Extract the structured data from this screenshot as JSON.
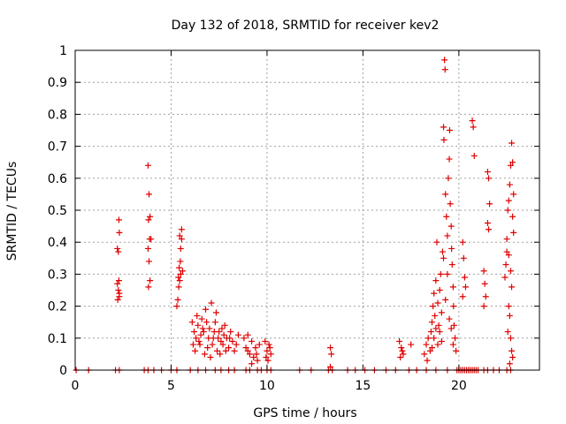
{
  "chart_data": {
    "type": "scatter",
    "title": "Day 132 of 2018, SRMTID for receiver kev2",
    "xlabel": "GPS time / hours",
    "ylabel": "SRMTID / TECUs",
    "xlim": [
      0,
      24.2
    ],
    "ylim": [
      0,
      1
    ],
    "xticks": [
      0,
      5,
      10,
      15,
      20
    ],
    "xtick_labels": [
      "0",
      "5",
      "10",
      "15",
      "20"
    ],
    "yticks": [
      0,
      0.1,
      0.2,
      0.3,
      0.4,
      0.5,
      0.6,
      0.7,
      0.8,
      0.9,
      1
    ],
    "ytick_labels": [
      "0",
      "0.1",
      "0.2",
      "0.3",
      "0.4",
      "0.5",
      "0.6",
      "0.7",
      "0.8",
      "0.9",
      "1"
    ],
    "grid": true,
    "marker": "+",
    "color": "#e00000",
    "series": [
      {
        "name": "SRMTID",
        "points": [
          [
            0.05,
            0
          ],
          [
            0.7,
            0
          ],
          [
            2.1,
            0
          ],
          [
            2.3,
            0
          ],
          [
            3.6,
            0
          ],
          [
            3.8,
            0
          ],
          [
            4.1,
            0
          ],
          [
            4.5,
            0
          ],
          [
            5.0,
            0
          ],
          [
            5.3,
            0
          ],
          [
            6.0,
            0
          ],
          [
            6.4,
            0
          ],
          [
            6.8,
            0
          ],
          [
            7.3,
            0
          ],
          [
            7.6,
            0
          ],
          [
            8.0,
            0
          ],
          [
            8.3,
            0
          ],
          [
            8.9,
            0
          ],
          [
            9.1,
            0
          ],
          [
            9.5,
            0
          ],
          [
            9.7,
            0
          ],
          [
            10.0,
            0
          ],
          [
            10.2,
            0
          ],
          [
            11.7,
            0
          ],
          [
            12.3,
            0
          ],
          [
            13.2,
            0
          ],
          [
            13.4,
            0
          ],
          [
            14.2,
            0
          ],
          [
            14.6,
            0
          ],
          [
            15.1,
            0
          ],
          [
            15.6,
            0
          ],
          [
            16.2,
            0
          ],
          [
            16.7,
            0
          ],
          [
            17.4,
            0
          ],
          [
            17.8,
            0
          ],
          [
            18.3,
            0
          ],
          [
            18.8,
            0
          ],
          [
            19.4,
            0
          ],
          [
            19.9,
            0
          ],
          [
            20.0,
            0
          ],
          [
            20.1,
            0
          ],
          [
            20.2,
            0
          ],
          [
            20.3,
            0
          ],
          [
            20.4,
            0
          ],
          [
            20.5,
            0
          ],
          [
            20.6,
            0
          ],
          [
            20.7,
            0
          ],
          [
            20.8,
            0
          ],
          [
            20.9,
            0
          ],
          [
            21.0,
            0
          ],
          [
            21.3,
            0
          ],
          [
            21.5,
            0
          ],
          [
            21.8,
            0
          ],
          [
            22.1,
            0
          ],
          [
            22.5,
            0
          ],
          [
            22.7,
            0
          ],
          [
            2.2,
            0.38
          ],
          [
            2.25,
            0.37
          ],
          [
            2.28,
            0.47
          ],
          [
            2.3,
            0.43
          ],
          [
            2.2,
            0.27
          ],
          [
            2.25,
            0.25
          ],
          [
            2.28,
            0.28
          ],
          [
            2.3,
            0.24
          ],
          [
            2.22,
            0.22
          ],
          [
            2.3,
            0.23
          ],
          [
            3.8,
            0.64
          ],
          [
            3.85,
            0.55
          ],
          [
            3.9,
            0.48
          ],
          [
            3.82,
            0.47
          ],
          [
            3.88,
            0.41
          ],
          [
            3.95,
            0.41
          ],
          [
            3.8,
            0.38
          ],
          [
            3.85,
            0.34
          ],
          [
            3.9,
            0.28
          ],
          [
            3.82,
            0.26
          ],
          [
            5.3,
            0.2
          ],
          [
            5.35,
            0.22
          ],
          [
            5.4,
            0.26
          ],
          [
            5.45,
            0.28
          ],
          [
            5.5,
            0.3
          ],
          [
            5.42,
            0.32
          ],
          [
            5.48,
            0.34
          ],
          [
            5.5,
            0.38
          ],
          [
            5.55,
            0.41
          ],
          [
            5.45,
            0.42
          ],
          [
            5.55,
            0.44
          ],
          [
            5.38,
            0.29
          ],
          [
            5.6,
            0.31
          ],
          [
            6.1,
            0.15
          ],
          [
            6.2,
            0.12
          ],
          [
            6.3,
            0.1
          ],
          [
            6.4,
            0.14
          ],
          [
            6.5,
            0.08
          ],
          [
            6.6,
            0.16
          ],
          [
            6.7,
            0.12
          ],
          [
            6.8,
            0.19
          ],
          [
            6.9,
            0.07
          ],
          [
            7.0,
            0.13
          ],
          [
            7.1,
            0.21
          ],
          [
            7.2,
            0.1
          ],
          [
            7.3,
            0.15
          ],
          [
            7.4,
            0.06
          ],
          [
            7.5,
            0.12
          ],
          [
            7.6,
            0.09
          ],
          [
            7.7,
            0.08
          ],
          [
            7.8,
            0.14
          ],
          [
            7.9,
            0.1
          ],
          [
            8.0,
            0.07
          ],
          [
            8.1,
            0.12
          ],
          [
            8.2,
            0.09
          ],
          [
            8.4,
            0.08
          ],
          [
            8.5,
            0.11
          ],
          [
            6.15,
            0.08
          ],
          [
            6.35,
            0.17
          ],
          [
            6.55,
            0.11
          ],
          [
            6.75,
            0.05
          ],
          [
            6.95,
            0.1
          ],
          [
            7.15,
            0.08
          ],
          [
            7.35,
            0.18
          ],
          [
            7.55,
            0.05
          ],
          [
            7.75,
            0.11
          ],
          [
            6.25,
            0.06
          ],
          [
            6.45,
            0.09
          ],
          [
            6.65,
            0.13
          ],
          [
            6.85,
            0.15
          ],
          [
            7.05,
            0.04
          ],
          [
            7.25,
            0.12
          ],
          [
            7.45,
            0.1
          ],
          [
            7.65,
            0.13
          ],
          [
            7.85,
            0.06
          ],
          [
            8.05,
            0.1
          ],
          [
            8.3,
            0.06
          ],
          [
            8.8,
            0.1
          ],
          [
            8.9,
            0.07
          ],
          [
            9.0,
            0.11
          ],
          [
            9.1,
            0.05
          ],
          [
            9.2,
            0.09
          ],
          [
            9.3,
            0.04
          ],
          [
            9.4,
            0.07
          ],
          [
            9.5,
            0.03
          ],
          [
            9.6,
            0.08
          ],
          [
            9.0,
            0.06
          ],
          [
            9.2,
            0.02
          ],
          [
            9.45,
            0.05
          ],
          [
            9.9,
            0.09
          ],
          [
            10.0,
            0.06
          ],
          [
            10.1,
            0.08
          ],
          [
            10.2,
            0.05
          ],
          [
            10.05,
            0.03
          ],
          [
            10.15,
            0.07
          ],
          [
            9.95,
            0.04
          ],
          [
            13.3,
            0.07
          ],
          [
            13.35,
            0.05
          ],
          [
            13.3,
            0.01
          ],
          [
            16.9,
            0.09
          ],
          [
            17.0,
            0.07
          ],
          [
            17.1,
            0.05
          ],
          [
            16.95,
            0.04
          ],
          [
            17.05,
            0.06
          ],
          [
            17.5,
            0.08
          ],
          [
            18.2,
            0.05
          ],
          [
            18.3,
            0.08
          ],
          [
            18.35,
            0.03
          ],
          [
            18.4,
            0.1
          ],
          [
            18.5,
            0.06
          ],
          [
            18.55,
            0.12
          ],
          [
            18.6,
            0.15
          ],
          [
            18.65,
            0.2
          ],
          [
            18.7,
            0.24
          ],
          [
            18.75,
            0.17
          ],
          [
            18.8,
            0.28
          ],
          [
            18.85,
            0.4
          ],
          [
            18.9,
            0.21
          ],
          [
            18.95,
            0.14
          ],
          [
            19.0,
            0.25
          ],
          [
            19.05,
            0.3
          ],
          [
            19.1,
            0.18
          ],
          [
            19.15,
            0.37
          ],
          [
            19.2,
            0.76
          ],
          [
            19.22,
            0.72
          ],
          [
            19.25,
            0.97
          ],
          [
            19.28,
            0.94
          ],
          [
            19.3,
            0.55
          ],
          [
            19.35,
            0.48
          ],
          [
            19.4,
            0.42
          ],
          [
            19.45,
            0.6
          ],
          [
            19.5,
            0.66
          ],
          [
            19.52,
            0.75
          ],
          [
            19.55,
            0.52
          ],
          [
            19.6,
            0.45
          ],
          [
            19.62,
            0.38
          ],
          [
            19.65,
            0.33
          ],
          [
            19.7,
            0.26
          ],
          [
            19.72,
            0.2
          ],
          [
            19.75,
            0.14
          ],
          [
            19.8,
            0.1
          ],
          [
            19.85,
            0.06
          ],
          [
            18.7,
            0.1
          ],
          [
            18.9,
            0.08
          ],
          [
            19.0,
            0.12
          ],
          [
            19.1,
            0.09
          ],
          [
            19.3,
            0.22
          ],
          [
            19.4,
            0.3
          ],
          [
            19.5,
            0.16
          ],
          [
            19.6,
            0.13
          ],
          [
            19.7,
            0.08
          ],
          [
            18.6,
            0.07
          ],
          [
            18.8,
            0.13
          ],
          [
            19.2,
            0.35
          ],
          [
            20.2,
            0.4
          ],
          [
            20.25,
            0.35
          ],
          [
            20.3,
            0.29
          ],
          [
            20.35,
            0.26
          ],
          [
            20.2,
            0.23
          ],
          [
            20.7,
            0.78
          ],
          [
            20.75,
            0.76
          ],
          [
            20.8,
            0.67
          ],
          [
            21.3,
            0.31
          ],
          [
            21.35,
            0.27
          ],
          [
            21.4,
            0.23
          ],
          [
            21.3,
            0.2
          ],
          [
            21.5,
            0.62
          ],
          [
            21.55,
            0.6
          ],
          [
            21.6,
            0.52
          ],
          [
            21.5,
            0.46
          ],
          [
            21.55,
            0.44
          ],
          [
            22.4,
            0.29
          ],
          [
            22.45,
            0.33
          ],
          [
            22.5,
            0.41
          ],
          [
            22.55,
            0.5
          ],
          [
            22.6,
            0.53
          ],
          [
            22.65,
            0.58
          ],
          [
            22.7,
            0.64
          ],
          [
            22.75,
            0.71
          ],
          [
            22.8,
            0.65
          ],
          [
            22.85,
            0.55
          ],
          [
            22.5,
            0.37
          ],
          [
            22.6,
            0.36
          ],
          [
            22.7,
            0.31
          ],
          [
            22.75,
            0.26
          ],
          [
            22.6,
            0.2
          ],
          [
            22.65,
            0.17
          ],
          [
            22.55,
            0.12
          ],
          [
            22.7,
            0.1
          ],
          [
            22.75,
            0.06
          ],
          [
            22.8,
            0.04
          ],
          [
            22.65,
            0.02
          ],
          [
            22.8,
            0.48
          ],
          [
            22.85,
            0.43
          ]
        ]
      }
    ]
  }
}
